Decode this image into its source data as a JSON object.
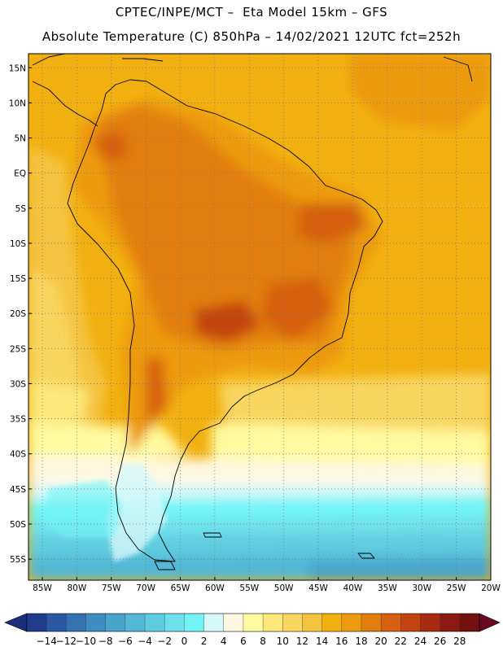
{
  "header": {
    "title_line1": "CPTEC/INPE/MCT –  Eta Model 15km – GFS",
    "title_line2": "Absolute Temperature (C) 850hPa – 14/02/2021 12UTC fct=252h"
  },
  "map": {
    "lat_labels": [
      "15N",
      "10N",
      "5N",
      "EQ",
      "5S",
      "10S",
      "15S",
      "20S",
      "25S",
      "30S",
      "35S",
      "40S",
      "45S",
      "50S",
      "55S"
    ],
    "lon_labels": [
      "85W",
      "80W",
      "75W",
      "70W",
      "65W",
      "60W",
      "55W",
      "50W",
      "45W",
      "40W",
      "35W",
      "30W",
      "25W",
      "20W"
    ],
    "lat_values": [
      15,
      10,
      5,
      0,
      -5,
      -10,
      -15,
      -20,
      -25,
      -30,
      -35,
      -40,
      -45,
      -50,
      -55
    ],
    "lon_values": [
      -85,
      -80,
      -75,
      -70,
      -65,
      -60,
      -55,
      -50,
      -45,
      -40,
      -35,
      -30,
      -25,
      -20
    ],
    "lat_range": [
      -58,
      17
    ],
    "lon_range": [
      -87,
      -20
    ],
    "gridlines": "dotted"
  },
  "colorbar": {
    "labels": [
      "-14",
      "-12",
      "-10",
      "-8",
      "-6",
      "-4",
      "-2",
      "0",
      "2",
      "4",
      "6",
      "8",
      "10",
      "12",
      "14",
      "16",
      "18",
      "20",
      "22",
      "24",
      "26",
      "28"
    ],
    "colors": [
      "#1f3d8c",
      "#2a58a4",
      "#3572b2",
      "#3e8cc0",
      "#48a4cc",
      "#53b8d6",
      "#5ecce0",
      "#6ee0ec",
      "#72f4f6",
      "#d6f8fa",
      "#fff8e0",
      "#fffaa0",
      "#fde87a",
      "#f9d660",
      "#f4c440",
      "#f2b010",
      "#ec9a10",
      "#e27e10",
      "#d66010",
      "#c24410",
      "#a82a10",
      "#8c1a10",
      "#741010"
    ],
    "under_color": "#1a2e7a",
    "over_color": "#6a0820"
  }
}
